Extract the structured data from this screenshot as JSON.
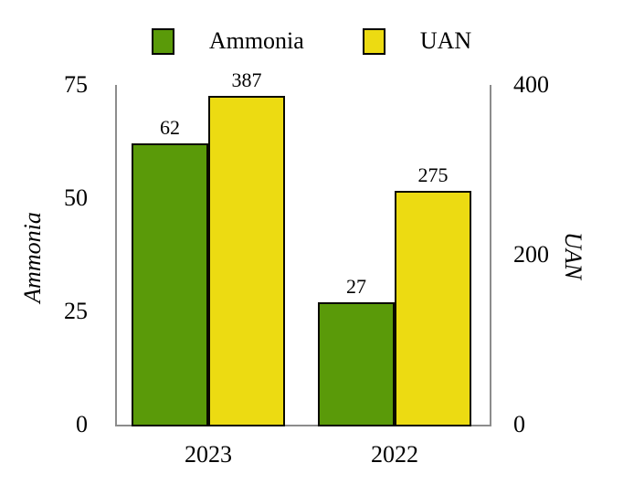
{
  "chart_data": {
    "type": "bar",
    "categories": [
      "2023",
      "2022"
    ],
    "series": [
      {
        "name": "Ammonia",
        "axis": "left",
        "color": "#5a9a09",
        "values": [
          62,
          27
        ]
      },
      {
        "name": "UAN",
        "axis": "right",
        "color": "#ecdb12",
        "values": [
          387,
          275
        ]
      }
    ],
    "left_axis": {
      "label": "Ammonia",
      "ticks": [
        0,
        25,
        50,
        75
      ],
      "range": [
        0,
        75
      ]
    },
    "right_axis": {
      "label": "UAN",
      "ticks": [
        0,
        200,
        400
      ],
      "range": [
        0,
        400
      ]
    },
    "value_labels": [
      {
        "category": "2023",
        "series": "Ammonia",
        "text": "62"
      },
      {
        "category": "2023",
        "series": "UAN",
        "text": "387"
      },
      {
        "category": "2022",
        "series": "Ammonia",
        "text": "27"
      },
      {
        "category": "2022",
        "series": "UAN",
        "text": "275"
      }
    ],
    "legend": [
      {
        "label": "Ammonia",
        "color": "#5a9a09"
      },
      {
        "label": "UAN",
        "color": "#ecdb12"
      }
    ],
    "legend_position": "top",
    "grid": false
  },
  "colors": {
    "background": "#ffffff",
    "axis_line": "#8c8c8c",
    "bar_border": "#0a0a00",
    "text": "#000000",
    "ammonia_green": "#5a9a09",
    "uan_yellow": "#ecdb12"
  }
}
